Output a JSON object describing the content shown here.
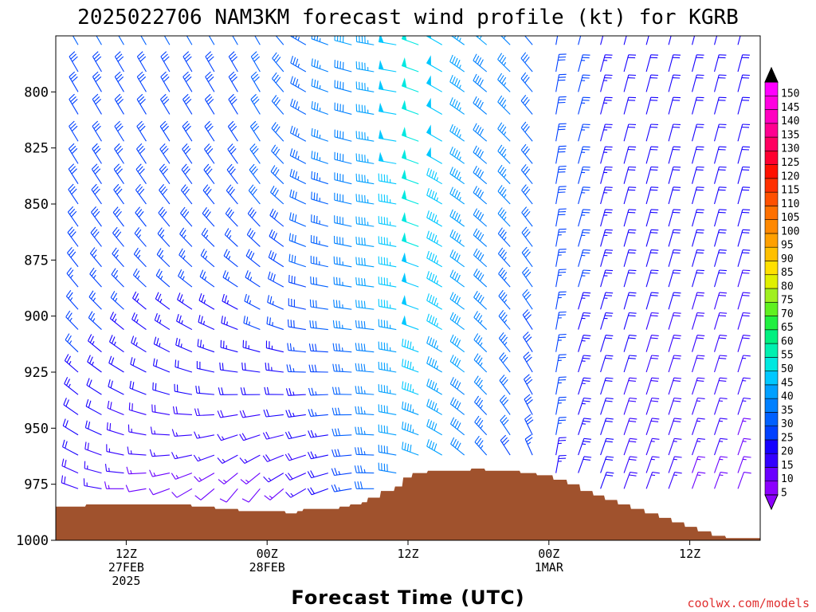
{
  "chart_data": {
    "type": "wind_barb_time_height",
    "title": "2025022706 NAM3KM forecast wind profile (kt) for KGRB",
    "xlabel": "Forecast Time (UTC)",
    "credit": "coolwx.com/models",
    "y_axis": {
      "min": 775,
      "max": 1000,
      "reversed": true,
      "ticks": [
        "800",
        "825",
        "850",
        "875",
        "900",
        "925",
        "950",
        "975",
        "1000"
      ]
    },
    "x_axis": {
      "range_hours": [
        0,
        60
      ],
      "ticks": [
        {
          "hour": 6,
          "lines": [
            "12Z",
            "27FEB",
            "2025"
          ]
        },
        {
          "hour": 18,
          "lines": [
            "00Z",
            "28FEB"
          ]
        },
        {
          "hour": 30,
          "lines": [
            "12Z"
          ]
        },
        {
          "hour": 42,
          "lines": [
            "00Z",
            "1MAR"
          ]
        },
        {
          "hour": 54,
          "lines": [
            "12Z"
          ]
        }
      ]
    },
    "levels_hpa": [
      779,
      791,
      800,
      810,
      822,
      832,
      841,
      850,
      860,
      869,
      878,
      887,
      897,
      906,
      916,
      925,
      935,
      944,
      953,
      962,
      970,
      977
    ],
    "times_hours": [
      0,
      1.9,
      3.9,
      5.8,
      7.7,
      9.7,
      11.6,
      13.5,
      15.5,
      17.4,
      19.4,
      21.3,
      23.2,
      25.2,
      27.1,
      29.0,
      30.9,
      32.9,
      34.8,
      36.7,
      38.7,
      40.6,
      42.6,
      44.5,
      46.4,
      48.4,
      50.3,
      52.2,
      54.2,
      56.1,
      58.1,
      60.0
    ],
    "wind_speed_kt": {
      "description": "speed by time (rows) aloft and near-surface",
      "aloft": [
        30,
        30,
        30,
        30,
        30,
        30,
        30,
        30,
        30,
        32,
        32,
        34,
        36,
        40,
        44,
        48,
        52,
        48,
        44,
        40,
        36,
        32,
        28,
        26,
        24,
        22,
        22,
        22,
        22,
        22,
        22,
        22
      ],
      "surface": [
        20,
        18,
        16,
        14,
        12,
        12,
        12,
        12,
        12,
        12,
        14,
        16,
        20,
        26,
        32,
        38,
        40,
        40,
        36,
        32,
        28,
        26,
        24,
        22,
        20,
        18,
        16,
        16,
        14,
        14,
        12,
        12
      ]
    },
    "wind_direction_deg": {
      "description": "meteorological direction wind blows from",
      "aloft": [
        330,
        330,
        330,
        330,
        330,
        330,
        330,
        330,
        330,
        330,
        320,
        300,
        290,
        285,
        280,
        280,
        290,
        300,
        305,
        310,
        315,
        320,
        10,
        15,
        15,
        15,
        15,
        15,
        15,
        15,
        15,
        15
      ],
      "surface": [
        300,
        290,
        280,
        270,
        260,
        250,
        240,
        230,
        220,
        220,
        230,
        240,
        250,
        260,
        270,
        280,
        290,
        300,
        310,
        320,
        330,
        340,
        10,
        20,
        20,
        20,
        20,
        20,
        20,
        20,
        20,
        20
      ]
    },
    "terrain_surface_pressure_hpa": [
      [
        0,
        985
      ],
      [
        2.5,
        985
      ],
      [
        2.6,
        984
      ],
      [
        11.5,
        984
      ],
      [
        11.6,
        985
      ],
      [
        13.5,
        985
      ],
      [
        13.6,
        986
      ],
      [
        15.5,
        986
      ],
      [
        15.6,
        987
      ],
      [
        19.5,
        987
      ],
      [
        19.6,
        988
      ],
      [
        20.5,
        988
      ],
      [
        20.6,
        987
      ],
      [
        21.0,
        987
      ],
      [
        21.1,
        986
      ],
      [
        24.1,
        986
      ],
      [
        24.2,
        985
      ],
      [
        25.0,
        985
      ],
      [
        25.1,
        984
      ],
      [
        26.0,
        984
      ],
      [
        26.1,
        983
      ],
      [
        26.5,
        983
      ],
      [
        26.6,
        981
      ],
      [
        27.6,
        981
      ],
      [
        27.7,
        978
      ],
      [
        28.8,
        978
      ],
      [
        28.9,
        976
      ],
      [
        29.5,
        976
      ],
      [
        29.6,
        972
      ],
      [
        30.3,
        972
      ],
      [
        30.4,
        970
      ],
      [
        31.6,
        970
      ],
      [
        31.7,
        969
      ],
      [
        35.3,
        969
      ],
      [
        35.4,
        968
      ],
      [
        36.5,
        968
      ],
      [
        36.6,
        969
      ],
      [
        39.5,
        969
      ],
      [
        39.6,
        970
      ],
      [
        40.9,
        970
      ],
      [
        41.0,
        971
      ],
      [
        42.3,
        971
      ],
      [
        42.4,
        973
      ],
      [
        43.5,
        973
      ],
      [
        43.6,
        975
      ],
      [
        44.6,
        975
      ],
      [
        44.7,
        978
      ],
      [
        45.7,
        978
      ],
      [
        45.8,
        980
      ],
      [
        46.7,
        980
      ],
      [
        46.8,
        982
      ],
      [
        47.8,
        982
      ],
      [
        47.9,
        984
      ],
      [
        48.9,
        984
      ],
      [
        49.0,
        986
      ],
      [
        50.1,
        986
      ],
      [
        50.2,
        988
      ],
      [
        51.3,
        988
      ],
      [
        51.4,
        990
      ],
      [
        52.4,
        990
      ],
      [
        52.5,
        992
      ],
      [
        53.5,
        992
      ],
      [
        53.6,
        994
      ],
      [
        54.6,
        994
      ],
      [
        54.7,
        996
      ],
      [
        55.8,
        996
      ],
      [
        55.9,
        998
      ],
      [
        57.0,
        998
      ],
      [
        57.1,
        999
      ],
      [
        60,
        999
      ]
    ],
    "colorbar": {
      "labels": [
        "5",
        "10",
        "15",
        "20",
        "25",
        "30",
        "35",
        "40",
        "45",
        "50",
        "55",
        "60",
        "65",
        "70",
        "75",
        "80",
        "85",
        "90",
        "95",
        "100",
        "105",
        "110",
        "115",
        "120",
        "125",
        "130",
        "135",
        "140",
        "145",
        "150"
      ],
      "colors": [
        "#8c00ff",
        "#6a00ff",
        "#3300ff",
        "#1500ff",
        "#0040ff",
        "#0060ff",
        "#0080ff",
        "#00a0ff",
        "#00c8ff",
        "#00e8e0",
        "#00f0b0",
        "#00f080",
        "#20f040",
        "#60f020",
        "#a0f020",
        "#e0f000",
        "#ffe000",
        "#ffc000",
        "#ffa000",
        "#ff8800",
        "#ff7000",
        "#ff5000",
        "#ff3000",
        "#ff1000",
        "#ff0030",
        "#ff0060",
        "#ff0090",
        "#ff00c0",
        "#ff00e0",
        "#ff00ff"
      ]
    },
    "terrain_color": "#a0522d",
    "grid": false
  }
}
